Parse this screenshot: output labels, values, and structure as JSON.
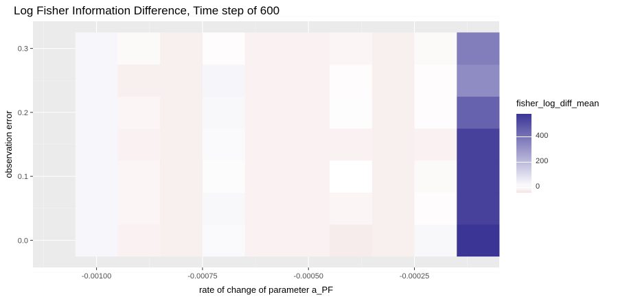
{
  "chart_data": {
    "type": "heatmap",
    "title": "Log Fisher Information Difference, Time step of 600",
    "xlabel": "rate of change of parameter a_PF",
    "ylabel": "observation error",
    "x_ticks": [
      -0.001,
      -0.00075,
      -0.0005,
      -0.00025
    ],
    "x_tick_labels": [
      "-0.00100",
      "-0.00075",
      "-0.00050",
      "-0.00025"
    ],
    "y_ticks": [
      0.0,
      0.1,
      0.2,
      0.3
    ],
    "y_tick_labels": [
      "0.0",
      "0.1",
      "0.2",
      "0.3"
    ],
    "x": [
      -0.001,
      -0.0009,
      -0.0008,
      -0.0007,
      -0.0006,
      -0.0005,
      -0.0004,
      -0.0003,
      -0.0002,
      -0.0001
    ],
    "y": [
      0.0,
      0.05,
      0.1,
      0.15,
      0.2,
      0.25,
      0.3
    ],
    "z": [
      [
        25,
        -20,
        -25,
        15,
        -20,
        -20,
        -30,
        -25,
        20,
        580
      ],
      [
        25,
        -15,
        -25,
        20,
        -20,
        -20,
        -15,
        -25,
        -5,
        545
      ],
      [
        25,
        -15,
        -25,
        10,
        -20,
        -20,
        0,
        -25,
        -10,
        545
      ],
      [
        25,
        -20,
        -25,
        15,
        -20,
        -20,
        -20,
        -25,
        -20,
        545
      ],
      [
        25,
        -15,
        -25,
        20,
        -20,
        -20,
        5,
        -25,
        -5,
        450
      ],
      [
        25,
        -25,
        -25,
        30,
        -20,
        -20,
        -5,
        -25,
        -5,
        330
      ],
      [
        25,
        -10,
        -25,
        -5,
        -20,
        -20,
        -15,
        -25,
        -10,
        370
      ]
    ],
    "legend": {
      "title": "fisher_log_diff_mean",
      "ticks": [
        0,
        200,
        400
      ],
      "tick_labels": [
        "0",
        "200",
        "400"
      ],
      "range": [
        -45,
        580
      ],
      "placement": "right"
    },
    "colors": {
      "low": "#f3e2e2",
      "mid": "#ffffff",
      "high": "#3b3596",
      "panel_background": "#ebebeb",
      "grid_major": "#ffffff",
      "grid_minor": "#f3f3f3"
    },
    "grid": true
  }
}
